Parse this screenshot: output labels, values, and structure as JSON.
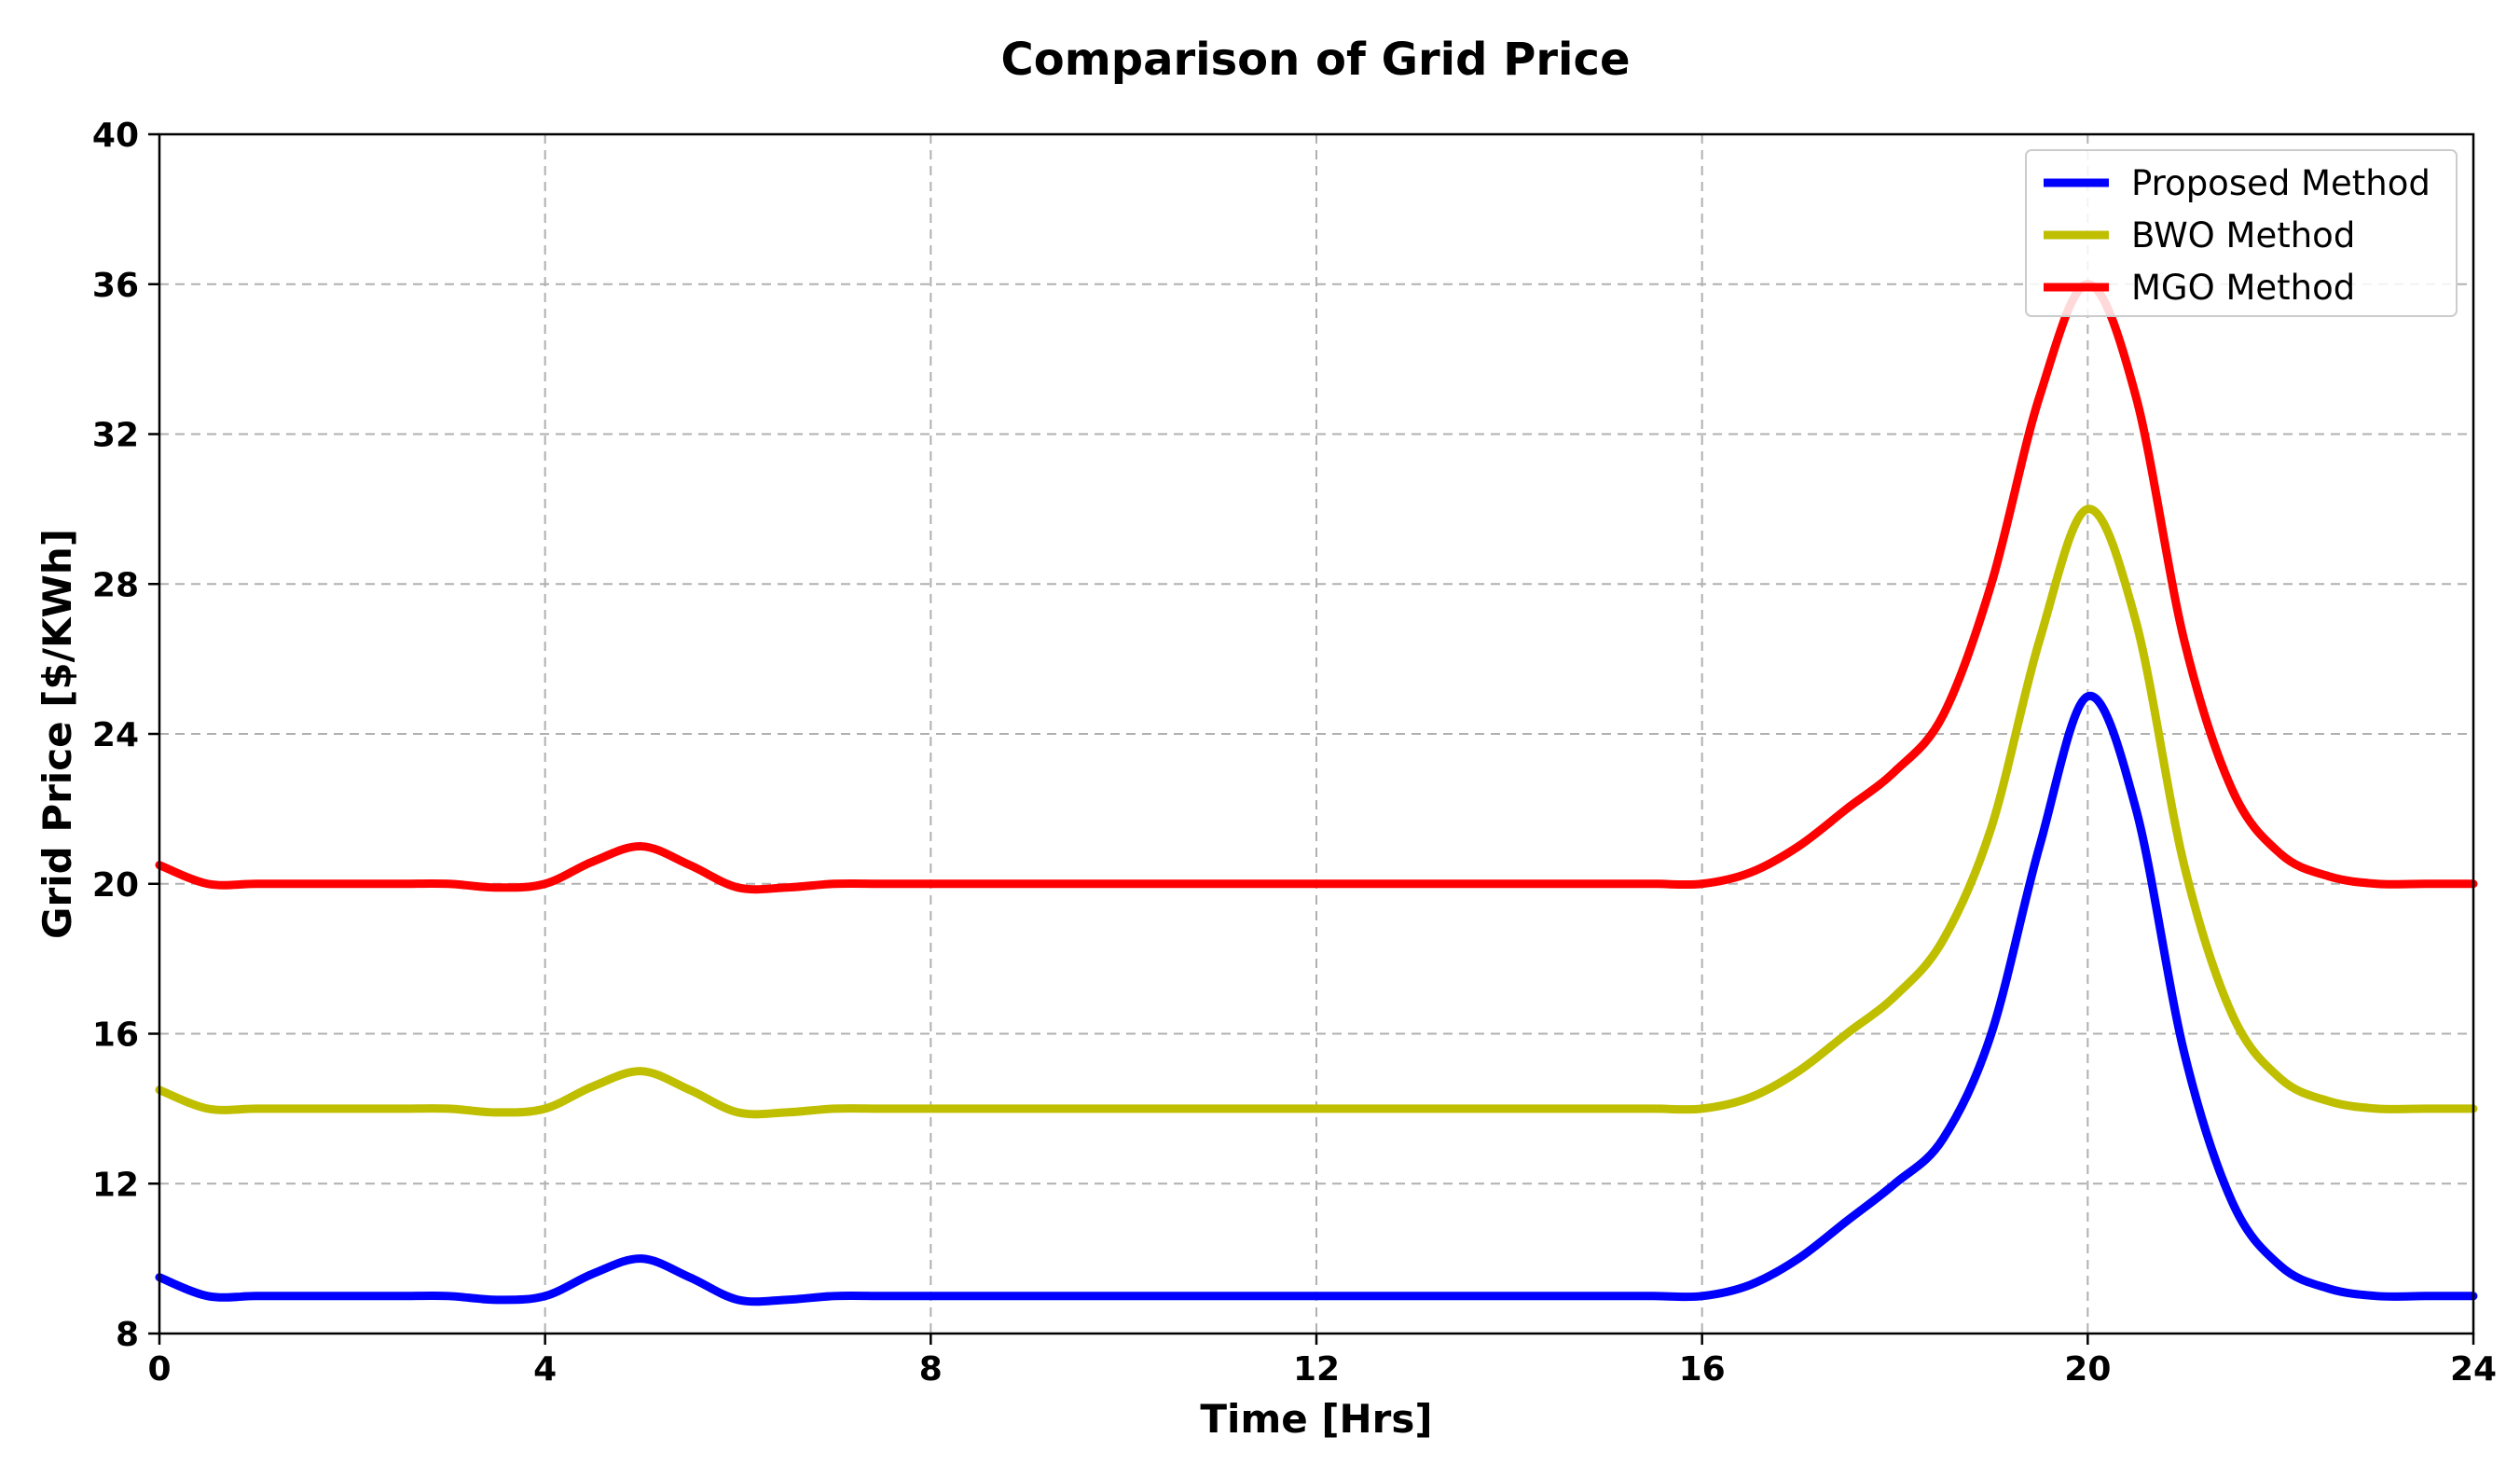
{
  "chart_data": {
    "type": "line",
    "title": "Comparison of Grid Price",
    "xlabel": "Time [Hrs]",
    "ylabel": "Grid Price [$/KWh]",
    "xlim": [
      0,
      24
    ],
    "ylim": [
      8,
      40
    ],
    "xticks": [
      0,
      4,
      8,
      12,
      16,
      20,
      24
    ],
    "yticks": [
      8,
      12,
      16,
      20,
      24,
      28,
      32,
      36,
      40
    ],
    "grid": true,
    "legend_position": "top-right",
    "x": [
      0,
      0.5,
      1,
      1.5,
      2,
      2.5,
      3,
      3.5,
      4,
      4.5,
      5,
      5.5,
      6,
      6.5,
      7,
      7.5,
      8,
      8.5,
      9,
      9.5,
      10,
      10.5,
      11,
      11.5,
      12,
      12.5,
      13,
      13.5,
      14,
      14.5,
      15,
      15.5,
      16,
      16.5,
      17,
      17.5,
      18,
      18.5,
      19,
      19.5,
      20,
      20.5,
      21,
      21.5,
      22,
      22.5,
      23,
      23.5,
      24
    ],
    "series": [
      {
        "name": "Proposed Method",
        "color": "#0000ff",
        "values": [
          9.5,
          9.0,
          9.0,
          9.0,
          9.0,
          9.0,
          9.0,
          8.9,
          9.0,
          9.6,
          10.0,
          9.5,
          8.9,
          8.9,
          9.0,
          9.0,
          9.0,
          9.0,
          9.0,
          9.0,
          9.0,
          9.0,
          9.0,
          9.0,
          9.0,
          9.0,
          9.0,
          9.0,
          9.0,
          9.0,
          9.0,
          9.0,
          9.0,
          9.3,
          10.0,
          11.0,
          12.0,
          13.2,
          16.0,
          21.0,
          25.0,
          22.0,
          15.5,
          11.5,
          9.8,
          9.2,
          9.0,
          9.0,
          9.0
        ]
      },
      {
        "name": "BWO Method",
        "color": "#bfbf00",
        "values": [
          14.5,
          14.0,
          14.0,
          14.0,
          14.0,
          14.0,
          14.0,
          13.9,
          14.0,
          14.6,
          15.0,
          14.5,
          13.9,
          13.9,
          14.0,
          14.0,
          14.0,
          14.0,
          14.0,
          14.0,
          14.0,
          14.0,
          14.0,
          14.0,
          14.0,
          14.0,
          14.0,
          14.0,
          14.0,
          14.0,
          14.0,
          14.0,
          14.0,
          14.3,
          15.0,
          16.0,
          17.0,
          18.5,
          21.5,
          26.5,
          30.0,
          27.0,
          20.5,
          16.5,
          14.8,
          14.2,
          14.0,
          14.0,
          14.0
        ]
      },
      {
        "name": "MGO Method",
        "color": "#ff0000",
        "values": [
          20.5,
          20.0,
          20.0,
          20.0,
          20.0,
          20.0,
          20.0,
          19.9,
          20.0,
          20.6,
          21.0,
          20.5,
          19.9,
          19.9,
          20.0,
          20.0,
          20.0,
          20.0,
          20.0,
          20.0,
          20.0,
          20.0,
          20.0,
          20.0,
          20.0,
          20.0,
          20.0,
          20.0,
          20.0,
          20.0,
          20.0,
          20.0,
          20.0,
          20.3,
          21.0,
          22.0,
          23.0,
          24.5,
          28.0,
          33.0,
          36.0,
          33.0,
          26.5,
          22.5,
          20.8,
          20.2,
          20.0,
          20.0,
          20.0
        ]
      }
    ]
  }
}
